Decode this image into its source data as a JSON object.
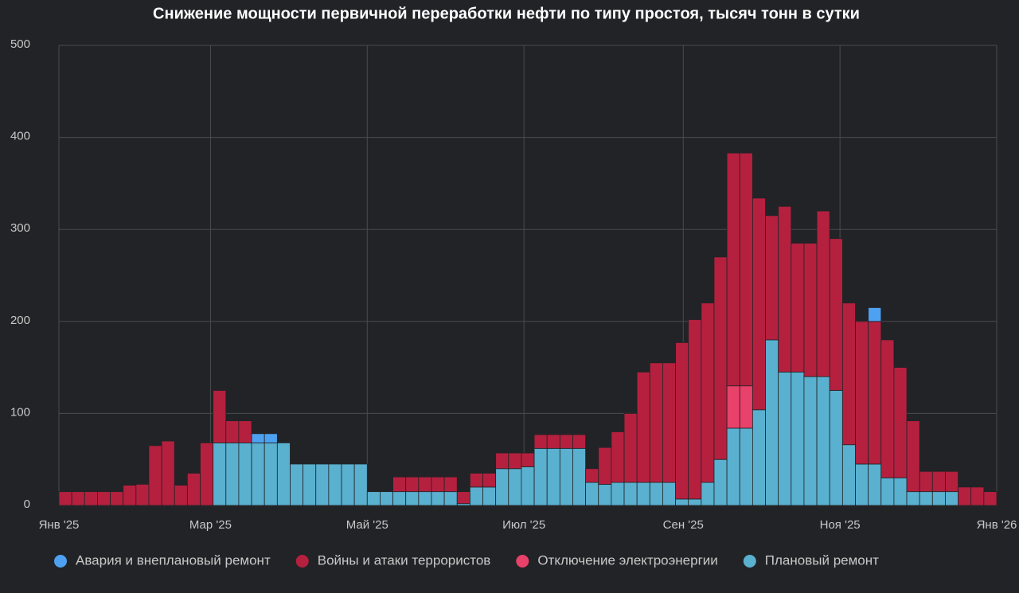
{
  "chart_data": {
    "type": "stacked_bar",
    "title": "Снижение мощности первичной переработки нефти по типу простоя, тысяч тонн в сутки",
    "x": [
      0,
      5,
      10,
      15,
      20,
      25,
      30,
      35,
      40,
      45,
      50,
      55,
      60,
      65,
      70,
      75,
      80,
      85,
      90,
      95,
      100,
      105,
      110,
      115,
      120,
      125,
      130,
      135,
      140,
      145,
      150,
      155,
      160,
      165,
      170,
      175,
      180,
      185,
      190,
      195,
      200,
      205,
      210,
      215,
      220,
      225,
      230,
      235,
      240,
      245,
      250,
      255,
      260,
      265,
      270,
      275,
      280,
      285,
      290,
      295,
      300,
      305,
      310,
      315,
      320,
      325,
      330,
      335,
      340,
      345,
      350,
      355,
      360
    ],
    "xlim": [
      0,
      365
    ],
    "xticks": [
      {
        "value": 0,
        "label": "Янв '25"
      },
      {
        "value": 59,
        "label": "Мар '25"
      },
      {
        "value": 120,
        "label": "Май '25"
      },
      {
        "value": 181,
        "label": "Июл '25"
      },
      {
        "value": 243,
        "label": "Сен '25"
      },
      {
        "value": 304,
        "label": "Ноя '25"
      },
      {
        "value": 365,
        "label": "Янв '26"
      }
    ],
    "ylim": [
      0,
      500
    ],
    "yticks": [
      0,
      100,
      200,
      300,
      400,
      500
    ],
    "grid": true,
    "series": [
      {
        "name": "Авария и внеплановый ремонт",
        "color": "#4ea1f0",
        "values": [
          0,
          0,
          0,
          0,
          0,
          0,
          0,
          0,
          0,
          0,
          0,
          0,
          0,
          0,
          0,
          10,
          10,
          0,
          0,
          0,
          0,
          0,
          0,
          0,
          0,
          0,
          0,
          0,
          0,
          0,
          0,
          0,
          0,
          0,
          0,
          0,
          0,
          0,
          0,
          0,
          0,
          0,
          0,
          0,
          0,
          0,
          0,
          0,
          0,
          0,
          0,
          0,
          0,
          0,
          0,
          0,
          0,
          0,
          0,
          0,
          0,
          0,
          0,
          15,
          0,
          0,
          0,
          0,
          0,
          0,
          0,
          0,
          0
        ]
      },
      {
        "name": "Войны и атаки террористов",
        "color": "#b5203f",
        "values": [
          15,
          15,
          15,
          15,
          15,
          22,
          23,
          65,
          70,
          22,
          35,
          68,
          57,
          24,
          24,
          0,
          0,
          0,
          0,
          0,
          0,
          0,
          0,
          0,
          0,
          0,
          16,
          16,
          16,
          16,
          16,
          13,
          15,
          15,
          17,
          17,
          15,
          15,
          15,
          15,
          15,
          15,
          40,
          55,
          75,
          120,
          130,
          130,
          170,
          195,
          195,
          220,
          253,
          253,
          230,
          135,
          180,
          140,
          145,
          180,
          165,
          154,
          155,
          155,
          150,
          120,
          77,
          22,
          22,
          22,
          20,
          20,
          15
        ]
      },
      {
        "name": "Отключение электроэнергии",
        "color": "#e8416a",
        "values": [
          0,
          0,
          0,
          0,
          0,
          0,
          0,
          0,
          0,
          0,
          0,
          0,
          0,
          0,
          0,
          0,
          0,
          0,
          0,
          0,
          0,
          0,
          0,
          0,
          0,
          0,
          0,
          0,
          0,
          0,
          0,
          0,
          0,
          0,
          0,
          0,
          0,
          0,
          0,
          0,
          0,
          0,
          0,
          0,
          0,
          0,
          0,
          0,
          0,
          0,
          0,
          0,
          46,
          46,
          0,
          0,
          0,
          0,
          0,
          0,
          0,
          0,
          0,
          0,
          0,
          0,
          0,
          0,
          0,
          0,
          0,
          0,
          0
        ]
      },
      {
        "name": "Плановый ремонт",
        "color": "#5ab0cf",
        "values": [
          0,
          0,
          0,
          0,
          0,
          0,
          0,
          0,
          0,
          0,
          0,
          0,
          68,
          68,
          68,
          68,
          68,
          68,
          45,
          45,
          45,
          45,
          45,
          45,
          15,
          15,
          15,
          15,
          15,
          15,
          15,
          2,
          20,
          20,
          40,
          40,
          42,
          62,
          62,
          62,
          62,
          25,
          23,
          25,
          25,
          25,
          25,
          25,
          7,
          7,
          25,
          50,
          84,
          84,
          104,
          180,
          145,
          145,
          140,
          140,
          125,
          66,
          45,
          45,
          30,
          30,
          15,
          15,
          15,
          15,
          0,
          0,
          0
        ]
      }
    ]
  }
}
